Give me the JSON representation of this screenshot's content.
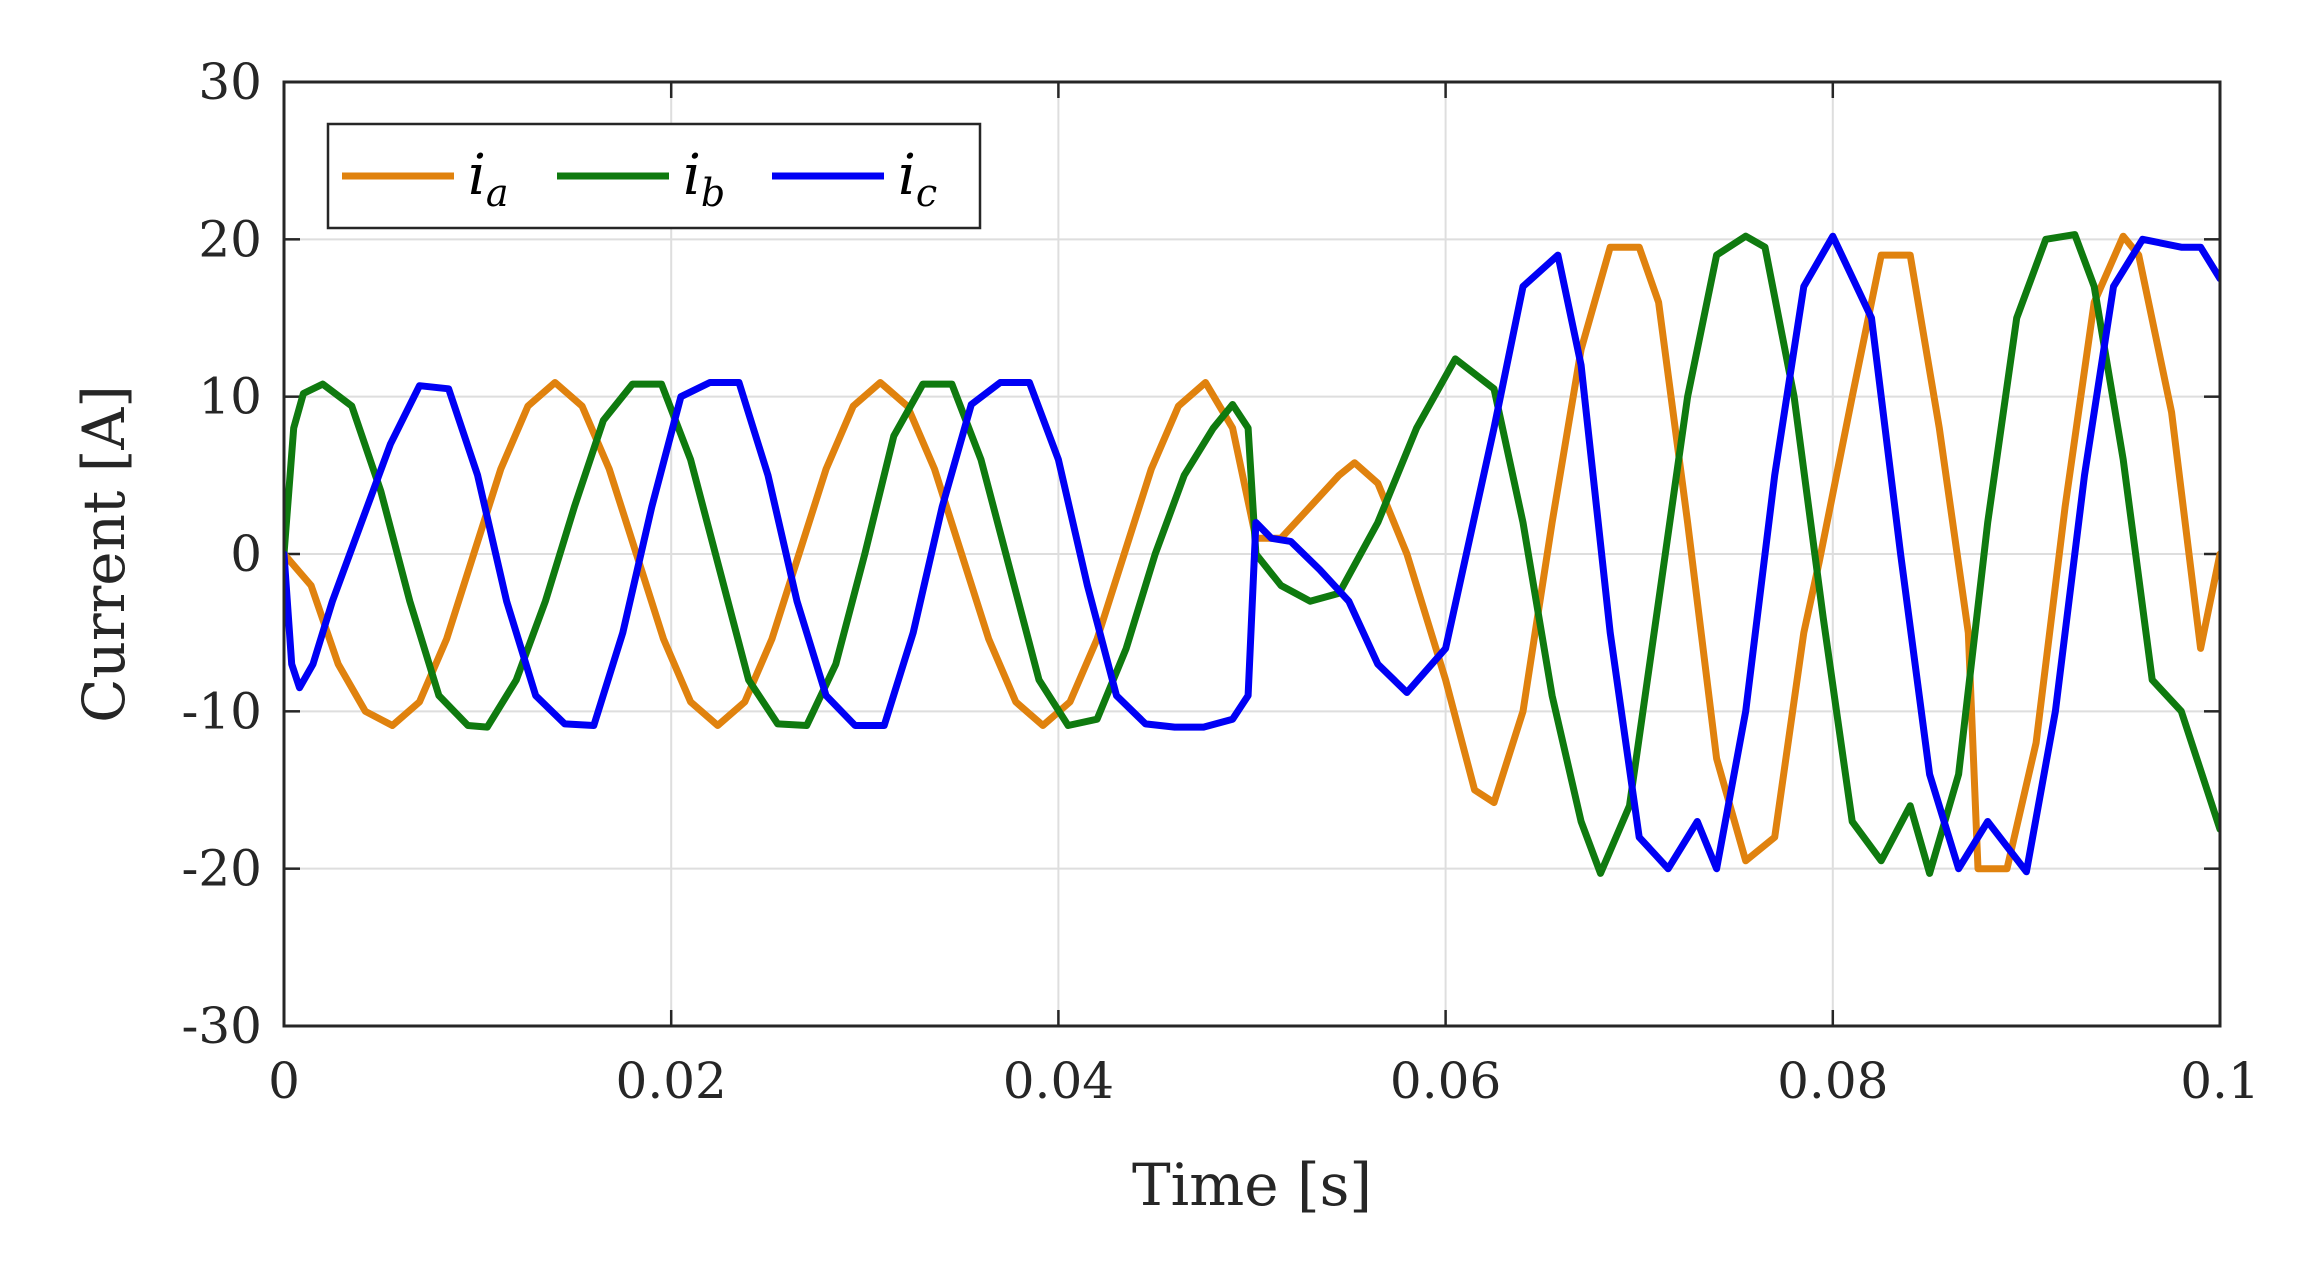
{
  "chart_data": {
    "type": "line",
    "xlabel": "Time [s]",
    "ylabel": "Current [A]",
    "xlim": [
      0,
      0.1
    ],
    "ylim": [
      -30,
      30
    ],
    "xticks": [
      0,
      0.02,
      0.04,
      0.06,
      0.08,
      0.1
    ],
    "xtick_labels": [
      "0",
      "0.02",
      "0.04",
      "0.06",
      "0.08",
      "0.1"
    ],
    "yticks": [
      -30,
      -20,
      -10,
      0,
      10,
      20,
      30
    ],
    "ytick_labels": [
      "-30",
      "-20",
      "-10",
      "0",
      "10",
      "20",
      "30"
    ],
    "grid": true,
    "legend_position": "top-left",
    "series": [
      {
        "name": "i_a",
        "label": "i",
        "subscript": "a",
        "color": "#E0820E",
        "x": [
          0,
          0.0014,
          0.0028,
          0.0042,
          0.0056,
          0.007,
          0.0084,
          0.0098,
          0.0112,
          0.0126,
          0.014,
          0.0154,
          0.0168,
          0.0182,
          0.0196,
          0.021,
          0.0224,
          0.0238,
          0.0252,
          0.0266,
          0.028,
          0.0294,
          0.0308,
          0.0322,
          0.0336,
          0.035,
          0.0364,
          0.0378,
          0.0392,
          0.0406,
          0.042,
          0.0434,
          0.0448,
          0.0462,
          0.0476,
          0.049,
          0.0502,
          0.0515,
          0.053,
          0.0545,
          0.0553,
          0.0565,
          0.058,
          0.06,
          0.0615,
          0.0625,
          0.064,
          0.0655,
          0.067,
          0.0685,
          0.07,
          0.071,
          0.0725,
          0.074,
          0.0755,
          0.077,
          0.0785,
          0.0793,
          0.081,
          0.0825,
          0.084,
          0.0855,
          0.087,
          0.0875,
          0.089,
          0.0905,
          0.092,
          0.0935,
          0.095,
          0.0958,
          0.0975,
          0.099,
          0.1
        ],
        "y": [
          0,
          -2,
          -7,
          -10,
          -10.9,
          -9.4,
          -5.4,
          0,
          5.4,
          9.4,
          10.9,
          9.4,
          5.4,
          0,
          -5.4,
          -9.4,
          -10.9,
          -9.4,
          -5.4,
          0,
          5.4,
          9.4,
          10.9,
          9.4,
          5.4,
          0,
          -5.4,
          -9.4,
          -10.9,
          -9.4,
          -5.4,
          0,
          5.4,
          9.4,
          10.9,
          8,
          1,
          1,
          3,
          5,
          5.8,
          4.5,
          0,
          -8,
          -15,
          -15.8,
          -10,
          2,
          13,
          19.5,
          19.5,
          16,
          2,
          -13,
          -19.5,
          -18,
          -5,
          -0.5,
          10,
          19,
          19,
          8,
          -5,
          -20,
          -20,
          -12,
          3,
          16,
          20.2,
          19,
          9,
          -6,
          0
        ]
      },
      {
        "name": "i_b",
        "label": "i",
        "subscript": "b",
        "color": "#0F7A0F",
        "x": [
          0,
          0.0005,
          0.001,
          0.002,
          0.0035,
          0.005,
          0.0065,
          0.008,
          0.0095,
          0.0105,
          0.012,
          0.0135,
          0.015,
          0.0165,
          0.018,
          0.0195,
          0.021,
          0.0225,
          0.024,
          0.0255,
          0.027,
          0.0285,
          0.03,
          0.0315,
          0.033,
          0.0345,
          0.036,
          0.0375,
          0.039,
          0.0405,
          0.042,
          0.0435,
          0.045,
          0.0465,
          0.048,
          0.049,
          0.0498,
          0.0502,
          0.0515,
          0.053,
          0.0545,
          0.0565,
          0.0585,
          0.0605,
          0.0625,
          0.064,
          0.0655,
          0.067,
          0.068,
          0.0695,
          0.071,
          0.0725,
          0.074,
          0.0755,
          0.0765,
          0.078,
          0.0795,
          0.081,
          0.0825,
          0.084,
          0.085,
          0.0865,
          0.088,
          0.0895,
          0.091,
          0.0925,
          0.0935,
          0.095,
          0.0965,
          0.098,
          0.1
        ],
        "y": [
          0,
          8,
          10.2,
          10.8,
          9.4,
          4,
          -3,
          -9,
          -10.9,
          -11,
          -8,
          -3,
          3,
          8.5,
          10.8,
          10.8,
          6,
          -1,
          -8,
          -10.8,
          -10.9,
          -7,
          0,
          7.5,
          10.8,
          10.8,
          6,
          -1,
          -8,
          -10.9,
          -10.5,
          -6,
          0,
          5,
          8,
          9.5,
          8,
          0,
          -2,
          -3,
          -2.5,
          2,
          8,
          12.4,
          10.5,
          2,
          -9,
          -17,
          -20.3,
          -16,
          -3,
          10,
          19,
          20.2,
          19.5,
          10,
          -4,
          -17,
          -19.5,
          -16,
          -20.3,
          -14,
          2,
          15,
          20,
          20.3,
          17,
          6,
          -8,
          -10,
          -17.5
        ]
      },
      {
        "name": "i_c",
        "label": "i",
        "subscript": "c",
        "color": "#0000F5",
        "x": [
          0,
          0.0004,
          0.0008,
          0.0015,
          0.0025,
          0.004,
          0.0055,
          0.007,
          0.0085,
          0.01,
          0.0115,
          0.013,
          0.0145,
          0.016,
          0.0175,
          0.019,
          0.0205,
          0.022,
          0.0235,
          0.025,
          0.0265,
          0.028,
          0.0295,
          0.031,
          0.0325,
          0.034,
          0.0355,
          0.037,
          0.0385,
          0.04,
          0.0415,
          0.043,
          0.0445,
          0.046,
          0.0475,
          0.049,
          0.0498,
          0.0502,
          0.051,
          0.052,
          0.0535,
          0.055,
          0.0565,
          0.058,
          0.06,
          0.0625,
          0.064,
          0.0658,
          0.067,
          0.0685,
          0.07,
          0.0715,
          0.073,
          0.074,
          0.0755,
          0.077,
          0.0785,
          0.08,
          0.082,
          0.0835,
          0.085,
          0.0865,
          0.088,
          0.09,
          0.0915,
          0.093,
          0.0945,
          0.096,
          0.098,
          0.099,
          0.1
        ],
        "y": [
          0,
          -7,
          -8.5,
          -7,
          -3,
          2,
          7,
          10.7,
          10.5,
          5,
          -3,
          -9,
          -10.8,
          -10.9,
          -5,
          3,
          10,
          10.9,
          10.9,
          5,
          -3,
          -9,
          -10.9,
          -10.9,
          -5,
          3,
          9.5,
          10.9,
          10.9,
          6,
          -2,
          -9,
          -10.8,
          -11,
          -11,
          -10.5,
          -9,
          2,
          1,
          0.8,
          -1,
          -3,
          -7,
          -8.8,
          -6,
          8,
          17,
          19,
          12,
          -5,
          -18,
          -20,
          -17,
          -20,
          -10,
          5,
          17,
          20.2,
          15,
          0,
          -14,
          -20,
          -17,
          -20.2,
          -10,
          5,
          17,
          20,
          19.5,
          19.5,
          17.5
        ]
      }
    ]
  }
}
